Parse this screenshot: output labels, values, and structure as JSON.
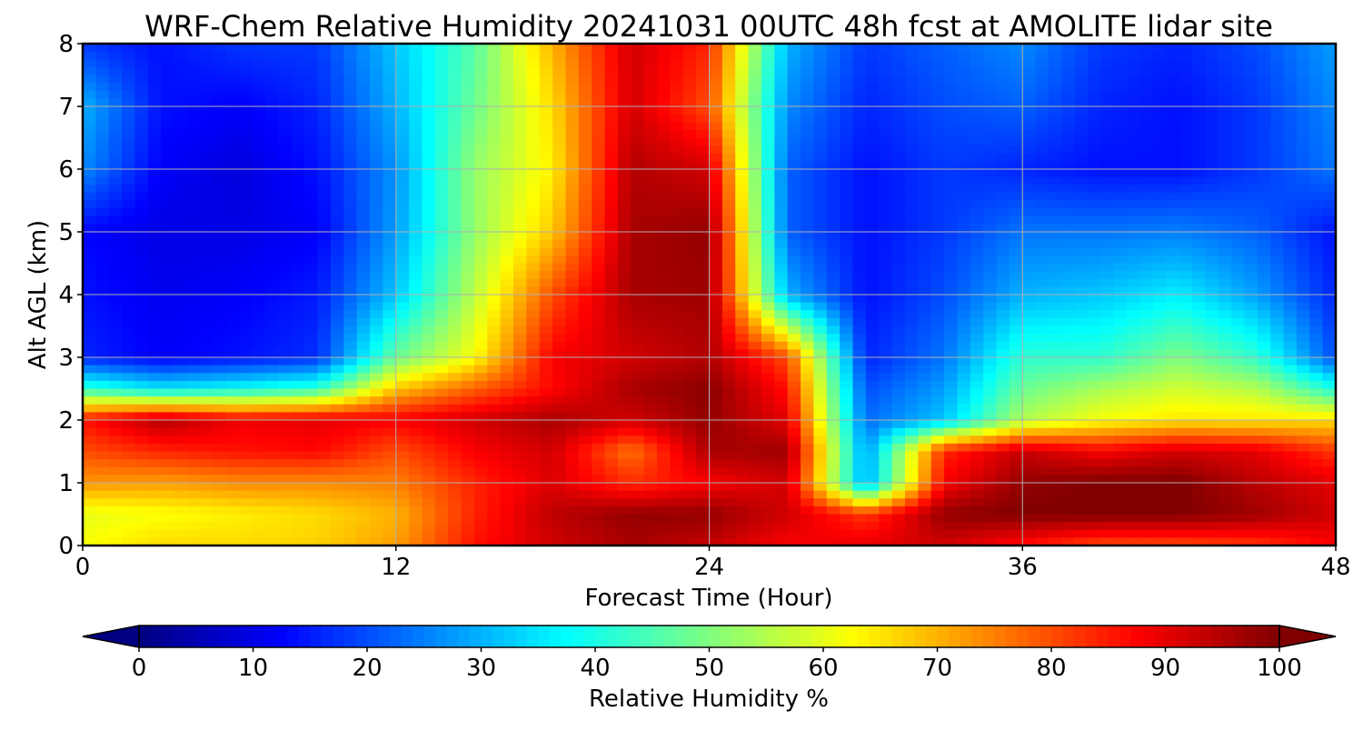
{
  "chart_data": {
    "type": "heatmap",
    "title": "WRF-Chem Relative Humidity 20241031 00UTC 48h fcst at AMOLITE lidar site",
    "xlabel": "Forecast Time (Hour)",
    "ylabel": "Alt AGL (km)",
    "xlim": [
      0,
      48
    ],
    "ylim": [
      0,
      8
    ],
    "x_ticks": [
      0,
      12,
      24,
      36,
      48
    ],
    "y_ticks": [
      0,
      1,
      2,
      3,
      4,
      5,
      6,
      7,
      8
    ],
    "grid": true,
    "colormap": "jet",
    "colorbar": {
      "label": "Relative Humidity %",
      "min": 0,
      "max": 100,
      "ticks": [
        0,
        10,
        20,
        30,
        40,
        50,
        60,
        70,
        80,
        90,
        100
      ],
      "extend": "both"
    },
    "x": [
      0,
      3,
      6,
      9,
      12,
      15,
      18,
      21,
      24,
      27,
      30,
      33,
      36,
      39,
      42,
      45,
      48
    ],
    "y": [
      0,
      0.5,
      1,
      1.5,
      2,
      2.5,
      3,
      4,
      5,
      6,
      7,
      8
    ],
    "z": [
      [
        62,
        66,
        66,
        67,
        72,
        86,
        92,
        96,
        93,
        88,
        90,
        92,
        86,
        80,
        80,
        82,
        88
      ],
      [
        60,
        62,
        64,
        66,
        70,
        84,
        94,
        98,
        98,
        92,
        82,
        98,
        100,
        100,
        100,
        97,
        92
      ],
      [
        73,
        72,
        74,
        74,
        75,
        84,
        91,
        83,
        88,
        92,
        28,
        88,
        98,
        100,
        100,
        94,
        90
      ],
      [
        80,
        84,
        86,
        87,
        80,
        88,
        92,
        76,
        96,
        97,
        27,
        84,
        93,
        88,
        92,
        90,
        82
      ],
      [
        86,
        95,
        89,
        90,
        88,
        92,
        96,
        92,
        98,
        90,
        23,
        32,
        55,
        62,
        65,
        65,
        66
      ],
      [
        42,
        35,
        38,
        42,
        68,
        78,
        87,
        96,
        99,
        86,
        20,
        28,
        48,
        54,
        58,
        55,
        40
      ],
      [
        16,
        12,
        14,
        17,
        48,
        62,
        88,
        92,
        95,
        80,
        16,
        24,
        42,
        42,
        50,
        42,
        20
      ],
      [
        14,
        11,
        12,
        15,
        32,
        56,
        80,
        96,
        97,
        30,
        14,
        20,
        30,
        32,
        36,
        28,
        16
      ],
      [
        13,
        10,
        10,
        12,
        28,
        52,
        68,
        96,
        98,
        22,
        14,
        18,
        24,
        24,
        25,
        22,
        14
      ],
      [
        26,
        12,
        9,
        14,
        27,
        52,
        64,
        95,
        92,
        22,
        14,
        18,
        16,
        14,
        14,
        18,
        24
      ],
      [
        30,
        14,
        12,
        16,
        30,
        48,
        66,
        92,
        80,
        26,
        16,
        20,
        22,
        16,
        14,
        18,
        26
      ],
      [
        18,
        14,
        18,
        18,
        32,
        46,
        70,
        92,
        84,
        30,
        18,
        22,
        26,
        18,
        16,
        20,
        28
      ]
    ]
  }
}
